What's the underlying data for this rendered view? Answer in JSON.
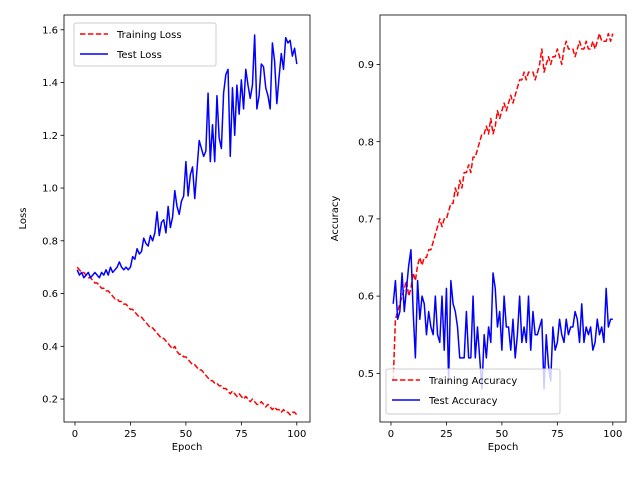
{
  "chart_data": [
    {
      "type": "line",
      "xlabel": "Epoch",
      "ylabel": "Loss",
      "xlim": [
        -4.95,
        105.95
      ],
      "ylim": [
        0.113,
        1.656
      ],
      "xticks": [
        0,
        25,
        50,
        75,
        100
      ],
      "yticks": [
        0.2,
        0.4,
        0.6,
        0.8,
        1.0,
        1.2,
        1.4,
        1.6
      ],
      "ytick_labels": [
        "0.2",
        "0.4",
        "0.6",
        "0.8",
        "1.0",
        "1.2",
        "1.4",
        "1.6"
      ],
      "legend_position": "upper-left",
      "grid": false,
      "series": [
        {
          "name": "Training Loss",
          "color": "#ff0000",
          "dash": "dashed",
          "x": [
            1,
            2,
            3,
            4,
            5,
            6,
            7,
            8,
            9,
            10,
            11,
            12,
            13,
            14,
            15,
            16,
            17,
            18,
            19,
            20,
            21,
            22,
            23,
            24,
            25,
            26,
            27,
            28,
            29,
            30,
            31,
            32,
            33,
            34,
            35,
            36,
            37,
            38,
            39,
            40,
            41,
            42,
            43,
            44,
            45,
            46,
            47,
            48,
            49,
            50,
            51,
            52,
            53,
            54,
            55,
            56,
            57,
            58,
            59,
            60,
            61,
            62,
            63,
            64,
            65,
            66,
            67,
            68,
            69,
            70,
            71,
            72,
            73,
            74,
            75,
            76,
            77,
            78,
            79,
            80,
            81,
            82,
            83,
            84,
            85,
            86,
            87,
            88,
            89,
            90,
            91,
            92,
            93,
            94,
            95,
            96,
            97,
            98,
            99,
            100
          ],
          "values": [
            0.7,
            0.69,
            0.68,
            0.68,
            0.67,
            0.66,
            0.66,
            0.65,
            0.64,
            0.64,
            0.63,
            0.62,
            0.62,
            0.61,
            0.61,
            0.6,
            0.59,
            0.58,
            0.58,
            0.57,
            0.57,
            0.56,
            0.56,
            0.55,
            0.54,
            0.54,
            0.53,
            0.52,
            0.51,
            0.51,
            0.5,
            0.49,
            0.48,
            0.47,
            0.47,
            0.46,
            0.45,
            0.44,
            0.43,
            0.43,
            0.42,
            0.41,
            0.4,
            0.39,
            0.4,
            0.38,
            0.37,
            0.37,
            0.36,
            0.36,
            0.35,
            0.34,
            0.33,
            0.33,
            0.32,
            0.31,
            0.31,
            0.3,
            0.29,
            0.28,
            0.27,
            0.27,
            0.26,
            0.26,
            0.25,
            0.25,
            0.24,
            0.24,
            0.23,
            0.22,
            0.23,
            0.22,
            0.21,
            0.22,
            0.21,
            0.2,
            0.21,
            0.2,
            0.19,
            0.2,
            0.19,
            0.18,
            0.18,
            0.19,
            0.18,
            0.17,
            0.18,
            0.17,
            0.16,
            0.17,
            0.16,
            0.16,
            0.15,
            0.16,
            0.15,
            0.15,
            0.14,
            0.15,
            0.15,
            0.14
          ]
        },
        {
          "name": "Test Loss",
          "color": "#0000ff",
          "dash": "solid",
          "x": [
            1,
            2,
            3,
            4,
            5,
            6,
            7,
            8,
            9,
            10,
            11,
            12,
            13,
            14,
            15,
            16,
            17,
            18,
            19,
            20,
            21,
            22,
            23,
            24,
            25,
            26,
            27,
            28,
            29,
            30,
            31,
            32,
            33,
            34,
            35,
            36,
            37,
            38,
            39,
            40,
            41,
            42,
            43,
            44,
            45,
            46,
            47,
            48,
            49,
            50,
            51,
            52,
            53,
            54,
            55,
            56,
            57,
            58,
            59,
            60,
            61,
            62,
            63,
            64,
            65,
            66,
            67,
            68,
            69,
            70,
            71,
            72,
            73,
            74,
            75,
            76,
            77,
            78,
            79,
            80,
            81,
            82,
            83,
            84,
            85,
            86,
            87,
            88,
            89,
            90,
            91,
            92,
            93,
            94,
            95,
            96,
            97,
            98,
            99,
            100
          ],
          "values": [
            0.69,
            0.67,
            0.68,
            0.66,
            0.67,
            0.68,
            0.66,
            0.67,
            0.68,
            0.67,
            0.66,
            0.68,
            0.67,
            0.69,
            0.67,
            0.7,
            0.68,
            0.69,
            0.7,
            0.72,
            0.7,
            0.69,
            0.7,
            0.69,
            0.7,
            0.74,
            0.73,
            0.77,
            0.75,
            0.76,
            0.81,
            0.79,
            0.78,
            0.82,
            0.8,
            0.83,
            0.91,
            0.82,
            0.87,
            0.88,
            0.83,
            0.93,
            0.85,
            0.89,
            0.99,
            0.93,
            0.9,
            0.95,
            0.97,
            1.1,
            0.97,
            1.05,
            1.08,
            0.96,
            1.07,
            1.18,
            1.15,
            1.12,
            1.14,
            1.36,
            1.1,
            1.24,
            1.1,
            1.35,
            1.19,
            1.15,
            1.36,
            1.43,
            1.45,
            1.12,
            1.38,
            1.2,
            1.39,
            1.28,
            1.41,
            1.3,
            1.45,
            1.39,
            1.34,
            1.39,
            1.58,
            1.3,
            1.35,
            1.47,
            1.46,
            1.38,
            1.35,
            1.3,
            1.55,
            1.48,
            1.32,
            1.42,
            1.51,
            1.45,
            1.57,
            1.55,
            1.56,
            1.5,
            1.53,
            1.47
          ]
        }
      ]
    },
    {
      "type": "line",
      "xlabel": "Epoch",
      "ylabel": "Accuracy",
      "xlim": [
        -4.95,
        105.95
      ],
      "ylim": [
        0.437,
        0.964
      ],
      "xticks": [
        0,
        25,
        50,
        75,
        100
      ],
      "yticks": [
        0.5,
        0.6,
        0.7,
        0.8,
        0.9
      ],
      "ytick_labels": [
        "0.5",
        "0.6",
        "0.7",
        "0.8",
        "0.9"
      ],
      "legend_position": "lower-left",
      "grid": false,
      "series": [
        {
          "name": "Training Accuracy",
          "color": "#ff0000",
          "dash": "dashed",
          "x": [
            1,
            2,
            3,
            4,
            5,
            6,
            7,
            8,
            9,
            10,
            11,
            12,
            13,
            14,
            15,
            16,
            17,
            18,
            19,
            20,
            21,
            22,
            23,
            24,
            25,
            26,
            27,
            28,
            29,
            30,
            31,
            32,
            33,
            34,
            35,
            36,
            37,
            38,
            39,
            40,
            41,
            42,
            43,
            44,
            45,
            46,
            47,
            48,
            49,
            50,
            51,
            52,
            53,
            54,
            55,
            56,
            57,
            58,
            59,
            60,
            61,
            62,
            63,
            64,
            65,
            66,
            67,
            68,
            69,
            70,
            71,
            72,
            73,
            74,
            75,
            76,
            77,
            78,
            79,
            80,
            81,
            82,
            83,
            84,
            85,
            86,
            87,
            88,
            89,
            90,
            91,
            92,
            93,
            94,
            95,
            96,
            97,
            98,
            99,
            100
          ],
          "values": [
            0.49,
            0.57,
            0.58,
            0.59,
            0.6,
            0.61,
            0.62,
            0.6,
            0.61,
            0.63,
            0.62,
            0.64,
            0.65,
            0.64,
            0.65,
            0.65,
            0.66,
            0.66,
            0.67,
            0.68,
            0.69,
            0.7,
            0.69,
            0.7,
            0.7,
            0.71,
            0.72,
            0.72,
            0.74,
            0.73,
            0.75,
            0.74,
            0.76,
            0.76,
            0.77,
            0.76,
            0.78,
            0.78,
            0.79,
            0.8,
            0.81,
            0.81,
            0.82,
            0.81,
            0.83,
            0.81,
            0.82,
            0.84,
            0.83,
            0.84,
            0.85,
            0.84,
            0.85,
            0.86,
            0.85,
            0.86,
            0.87,
            0.88,
            0.88,
            0.89,
            0.88,
            0.89,
            0.89,
            0.89,
            0.88,
            0.89,
            0.9,
            0.92,
            0.89,
            0.9,
            0.91,
            0.9,
            0.91,
            0.91,
            0.92,
            0.91,
            0.9,
            0.92,
            0.93,
            0.92,
            0.92,
            0.92,
            0.91,
            0.92,
            0.93,
            0.92,
            0.92,
            0.93,
            0.92,
            0.92,
            0.93,
            0.92,
            0.93,
            0.94,
            0.93,
            0.93,
            0.93,
            0.94,
            0.93,
            0.94
          ]
        },
        {
          "name": "Test Accuracy",
          "color": "#0000ff",
          "dash": "solid",
          "x": [
            1,
            2,
            3,
            4,
            5,
            6,
            7,
            8,
            9,
            10,
            11,
            12,
            13,
            14,
            15,
            16,
            17,
            18,
            19,
            20,
            21,
            22,
            23,
            24,
            25,
            26,
            27,
            28,
            29,
            30,
            31,
            32,
            33,
            34,
            35,
            36,
            37,
            38,
            39,
            40,
            41,
            42,
            43,
            44,
            45,
            46,
            47,
            48,
            49,
            50,
            51,
            52,
            53,
            54,
            55,
            56,
            57,
            58,
            59,
            60,
            61,
            62,
            63,
            64,
            65,
            66,
            67,
            68,
            69,
            70,
            71,
            72,
            73,
            74,
            75,
            76,
            77,
            78,
            79,
            80,
            81,
            82,
            83,
            84,
            85,
            86,
            87,
            88,
            89,
            90,
            91,
            92,
            93,
            94,
            95,
            96,
            97,
            98,
            99,
            100
          ],
          "values": [
            0.59,
            0.62,
            0.57,
            0.58,
            0.63,
            0.58,
            0.61,
            0.64,
            0.66,
            0.58,
            0.52,
            0.62,
            0.57,
            0.6,
            0.59,
            0.55,
            0.58,
            0.56,
            0.55,
            0.6,
            0.55,
            0.54,
            0.6,
            0.53,
            0.61,
            0.49,
            0.62,
            0.59,
            0.58,
            0.56,
            0.52,
            0.52,
            0.52,
            0.58,
            0.52,
            0.52,
            0.6,
            0.52,
            0.56,
            0.52,
            0.48,
            0.55,
            0.52,
            0.56,
            0.54,
            0.63,
            0.61,
            0.56,
            0.58,
            0.53,
            0.6,
            0.56,
            0.56,
            0.53,
            0.57,
            0.52,
            0.55,
            0.6,
            0.54,
            0.56,
            0.54,
            0.6,
            0.53,
            0.58,
            0.55,
            0.55,
            0.56,
            0.57,
            0.48,
            0.55,
            0.51,
            0.49,
            0.56,
            0.53,
            0.54,
            0.57,
            0.55,
            0.54,
            0.57,
            0.55,
            0.56,
            0.56,
            0.58,
            0.57,
            0.54,
            0.59,
            0.54,
            0.56,
            0.55,
            0.56,
            0.53,
            0.54,
            0.57,
            0.55,
            0.56,
            0.54,
            0.61,
            0.56,
            0.57,
            0.57
          ]
        }
      ]
    }
  ]
}
